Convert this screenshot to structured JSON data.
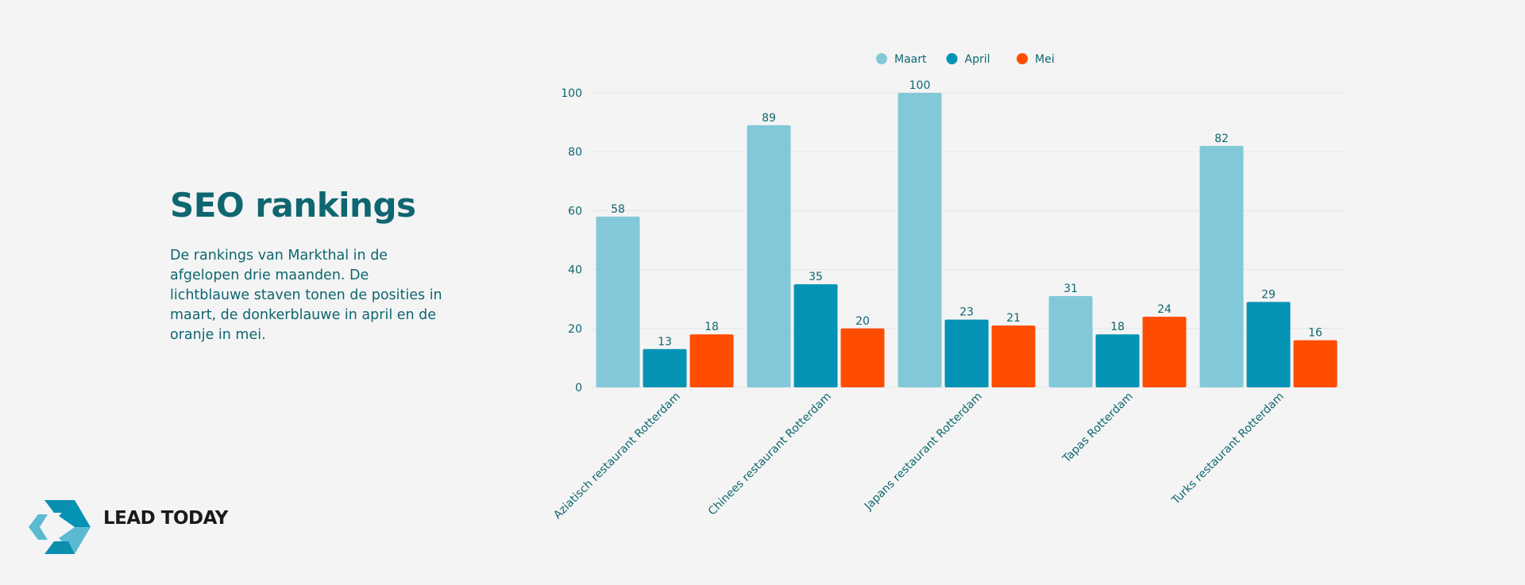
{
  "page": {
    "title": "SEO rankings",
    "description": "De rankings van Markthal in de afgelopen drie maanden. De lichtblauwe staven tonen de posities in maart, de donkerblauwe in april en de oranje in mei."
  },
  "logo": {
    "text": "LEAD TODAY",
    "icon": "lead-today-logo-icon"
  },
  "colors": {
    "title": "#0e6670",
    "grid": "#e2e6e8",
    "background": "#f4f4f4"
  },
  "chart_data": {
    "type": "bar",
    "categories": [
      "Aziatisch restaurant Rotterdam",
      "Chinees restaurant Rotterdam",
      "Japans restaurant Rotterdam",
      "Tapas Rotterdam",
      "Turks restaurant Rotterdam"
    ],
    "series": [
      {
        "name": "Maart",
        "color": "#82c8d9",
        "values": [
          58,
          89,
          100,
          31,
          82
        ]
      },
      {
        "name": "April",
        "color": "#0493b4",
        "values": [
          13,
          35,
          23,
          18,
          29
        ]
      },
      {
        "name": "Mei",
        "color": "#ff4d00",
        "values": [
          18,
          20,
          21,
          24,
          16
        ]
      }
    ],
    "ylim": [
      0,
      100
    ],
    "yticks": [
      0,
      20,
      40,
      60,
      80,
      100
    ],
    "grid": true,
    "legend": "top-center",
    "data_labels": true
  }
}
